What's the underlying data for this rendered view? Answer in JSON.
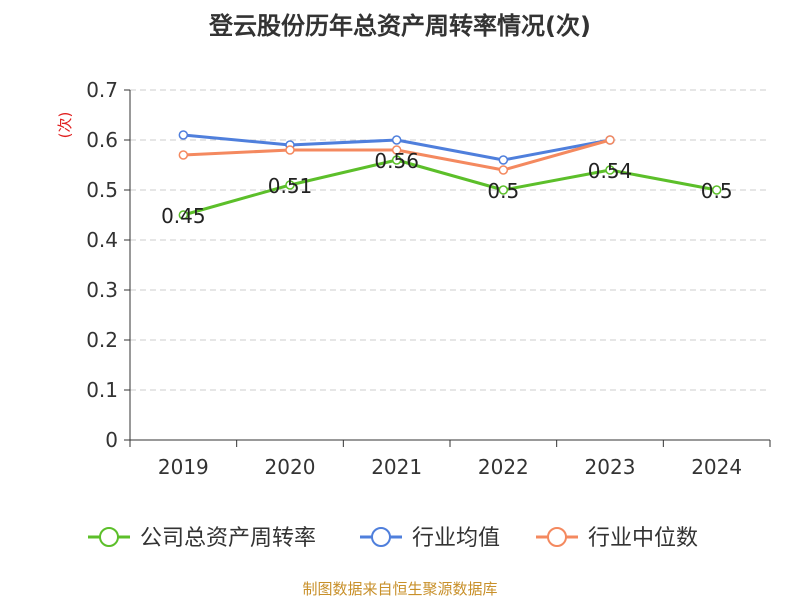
{
  "chart_data": {
    "type": "line",
    "title": "登云股份历年总资产周转率情况(次)",
    "ylabel": "(次)",
    "xlabel": "",
    "categories": [
      "2019",
      "2020",
      "2021",
      "2022",
      "2023",
      "2024"
    ],
    "ylim": [
      0,
      0.7
    ],
    "yticks": [
      "0",
      "0.1",
      "0.2",
      "0.3",
      "0.4",
      "0.5",
      "0.6",
      "0.7"
    ],
    "grid": true,
    "legend_position": "bottom",
    "series": [
      {
        "name": "公司总资产周转率",
        "color": "#5cbf2a",
        "values": [
          0.45,
          0.51,
          0.56,
          0.5,
          0.54,
          0.5
        ],
        "data_labels": [
          "0.45",
          "0.51",
          "0.56",
          "0.5",
          "0.54",
          "0.5"
        ]
      },
      {
        "name": "行业均值",
        "color": "#4f7fdc",
        "values": [
          0.61,
          0.59,
          0.6,
          0.56,
          0.6,
          null
        ]
      },
      {
        "name": "行业中位数",
        "color": "#f4895f",
        "values": [
          0.57,
          0.58,
          0.58,
          0.54,
          0.6,
          null
        ]
      }
    ]
  },
  "source": "制图数据来自恒生聚源数据库"
}
